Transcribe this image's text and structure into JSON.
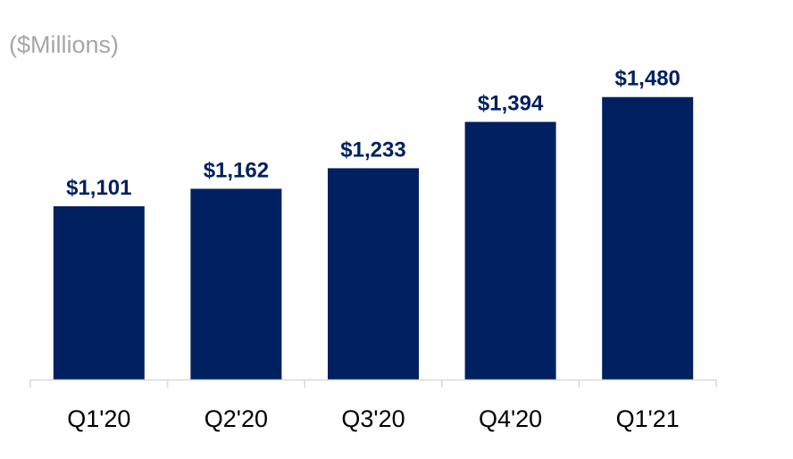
{
  "units_label": "($Millions)",
  "colors": {
    "bar": "#002060",
    "value_label": "#002060",
    "axis": "#d9d9d9",
    "units_label": "#a6a6a6"
  },
  "chart_data": {
    "type": "bar",
    "title": "",
    "xlabel": "",
    "ylabel": "($Millions)",
    "categories": [
      "Q1'20",
      "Q2'20",
      "Q3'20",
      "Q4'20",
      "Q1'21"
    ],
    "values": [
      1101,
      1162,
      1233,
      1394,
      1480
    ],
    "value_labels": [
      "$1,101",
      "$1,162",
      "$1,233",
      "$1,394",
      "$1,480"
    ],
    "ylim": [
      500,
      1600
    ],
    "grid": false,
    "legend": "none"
  }
}
